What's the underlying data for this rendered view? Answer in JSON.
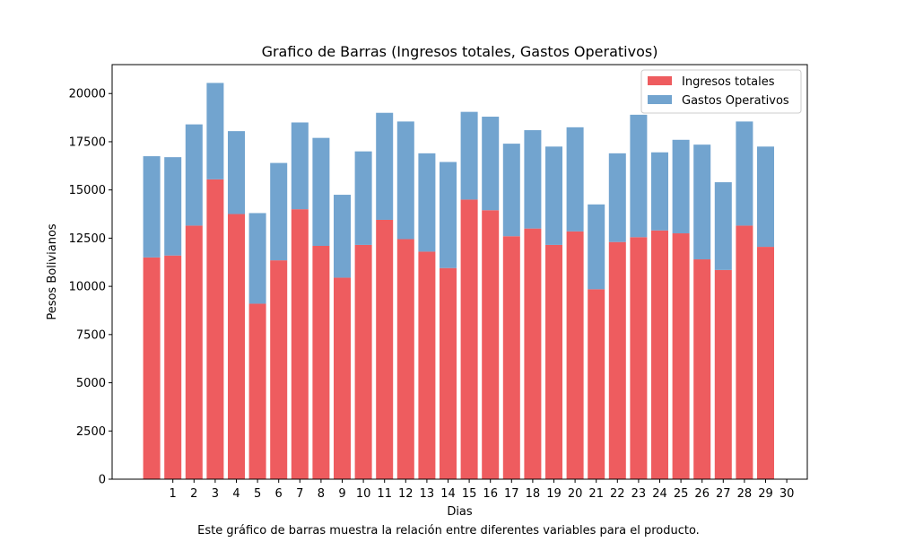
{
  "caption": "Este gráfico de barras muestra la relación entre diferentes variables para el producto.",
  "chart_data": {
    "type": "bar",
    "stacked": true,
    "title": "Grafico de Barras (Ingresos totales, Gastos Operativos)",
    "xlabel": "Dias",
    "ylabel": "Pesos Bolivianos",
    "ylim": [
      0,
      21500
    ],
    "yticks": [
      0,
      2500,
      5000,
      7500,
      10000,
      12500,
      15000,
      17500,
      20000
    ],
    "xticks": [
      "1",
      "2",
      "3",
      "4",
      "5",
      "6",
      "7",
      "8",
      "9",
      "10",
      "11",
      "12",
      "13",
      "14",
      "15",
      "16",
      "17",
      "18",
      "19",
      "20",
      "21",
      "22",
      "23",
      "24",
      "25",
      "26",
      "27",
      "28",
      "29",
      "30"
    ],
    "legend_position": "top-right",
    "grid": false,
    "series": [
      {
        "name": "Ingresos totales",
        "color": "#ee5c5f",
        "values": [
          11500,
          11600,
          13150,
          15550,
          13750,
          9100,
          11350,
          14000,
          12100,
          10450,
          12150,
          13450,
          12450,
          11800,
          10950,
          14500,
          13950,
          12600,
          13000,
          12150,
          12850,
          9850,
          12300,
          12550,
          12900,
          12750,
          11400,
          10850,
          13150,
          12050
        ]
      },
      {
        "name": "Gastos Operativos",
        "color": "#72a4cf",
        "values": [
          5250,
          5100,
          5250,
          5000,
          4300,
          4700,
          5050,
          4500,
          5600,
          4300,
          4850,
          5550,
          6100,
          5100,
          5500,
          4550,
          4850,
          4800,
          5100,
          5100,
          5400,
          4400,
          4600,
          6350,
          4050,
          4850,
          5950,
          4550,
          5400,
          5200
        ]
      }
    ]
  }
}
